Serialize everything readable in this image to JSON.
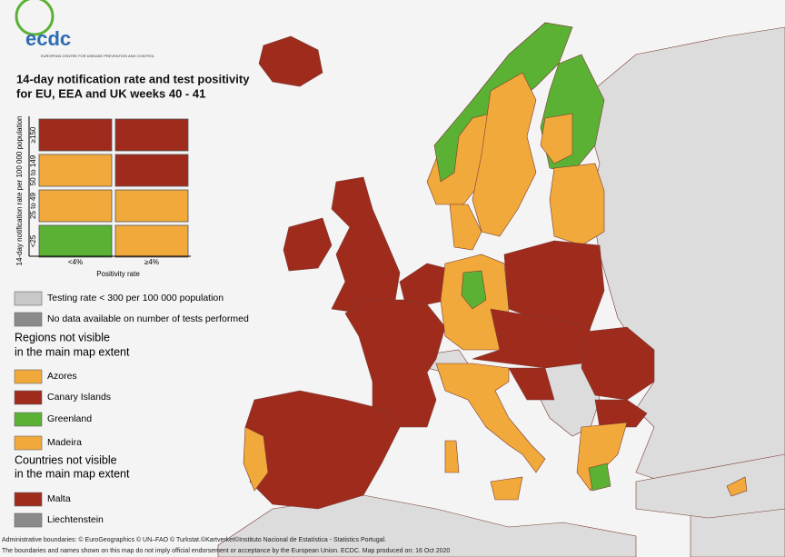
{
  "logo": {
    "name": "ecdc",
    "subtitle": "EUROPEAN CENTRE FOR DISEASE PREVENTION AND CONTROL"
  },
  "title": [
    "14-day notification rate and test positivity",
    "for EU, EEA and UK weeks 40 - 41"
  ],
  "matrix": {
    "y_title": "14-day notification rate per 100 000 population",
    "x_title": "Positivity rate",
    "rows": [
      "≥150",
      "50 to 149",
      "25 to 49",
      "<25"
    ],
    "columns": [
      "<4%",
      "≥4%"
    ],
    "cells": [
      [
        "#9f2b1d",
        "#9f2b1d"
      ],
      [
        "#f2a93b",
        "#9f2b1d"
      ],
      [
        "#f2a93b",
        "#f2a93b"
      ],
      [
        "#5bb134",
        "#f2a93b"
      ]
    ]
  },
  "legend": [
    {
      "label": "Testing rate < 300 per 100 000 population",
      "color": "#c8c8c8"
    },
    {
      "label": "No data available on number of tests performed",
      "color": "#8a8a8a"
    }
  ],
  "regions_heading": [
    "Regions not visible",
    "in the main map extent"
  ],
  "regions": [
    {
      "label": "Azores",
      "color": "#f2a93b"
    },
    {
      "label": "Canary Islands",
      "color": "#9f2b1d"
    },
    {
      "label": "Greenland",
      "color": "#5bb134"
    },
    {
      "label": "Madeira",
      "color": "#f2a93b"
    }
  ],
  "countries_heading": [
    "Countries not visible",
    "in the main map extent"
  ],
  "countries": [
    {
      "label": "Malta",
      "color": "#9f2b1d"
    },
    {
      "label": "Liechtenstein",
      "color": "#8a8a8a"
    }
  ],
  "footer": [
    "Administrative boundaries: © EuroGeographics © UN–FAO © Turkstat.©Kartverket©Instituto Nacional de Estatística - Statistics Portugal.",
    "The boundaries and names shown on this map do not imply official endorsement or acceptance by the European Union. ECDC. Map produced on: 16 Oct 2020"
  ]
}
